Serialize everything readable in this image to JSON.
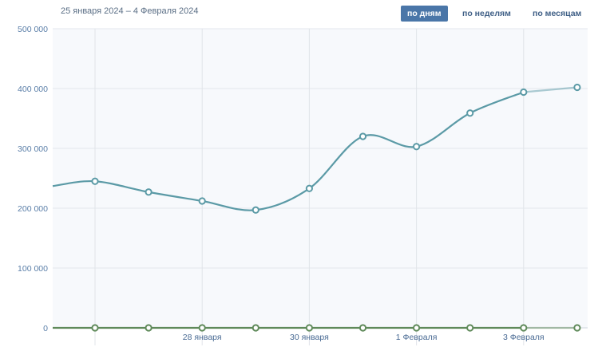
{
  "header": {
    "date_range": "25 января 2024 – 4 Февраля 2024",
    "periods": [
      {
        "label": "по дням",
        "active": true
      },
      {
        "label": "по неделям",
        "active": false
      },
      {
        "label": "по месяцам",
        "active": false
      }
    ]
  },
  "chart_data": {
    "type": "line",
    "x": [
      "2024-01-26",
      "2024-01-27",
      "2024-01-28",
      "2024-01-29",
      "2024-01-30",
      "2024-01-31",
      "2024-02-01",
      "2024-02-02",
      "2024-02-03",
      "2024-02-04"
    ],
    "x_tick_labels": [
      {
        "date": "2024-01-28",
        "label": "28 января"
      },
      {
        "date": "2024-01-30",
        "label": "30 января"
      },
      {
        "date": "2024-02-01",
        "label": "1 Февраля"
      },
      {
        "date": "2024-02-03",
        "label": "3 Февраля"
      }
    ],
    "x_start_value_left_edge": 237000,
    "series": [
      {
        "color": "#5b9aa6",
        "values": [
          245000,
          227000,
          212000,
          197000,
          233000,
          320000,
          303000,
          359000,
          394000,
          402000
        ]
      },
      {
        "color": "#5f8a5a",
        "values": [
          0,
          0,
          0,
          0,
          0,
          0,
          0,
          0,
          0,
          0
        ]
      }
    ],
    "ylim": [
      0,
      500000
    ],
    "y_ticks": [
      "0",
      "100 000",
      "200 000",
      "300 000",
      "400 000",
      "500 000"
    ],
    "grid": true,
    "title": "",
    "xlabel": "",
    "ylabel": ""
  }
}
